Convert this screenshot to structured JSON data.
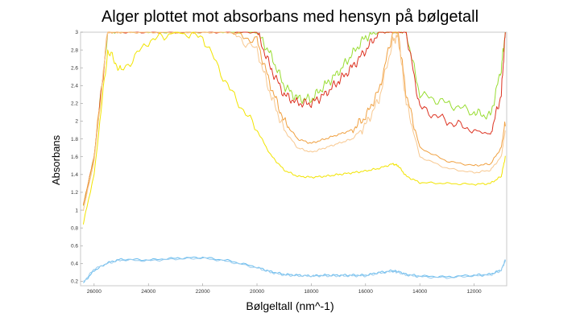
{
  "chart_data": {
    "type": "line",
    "title": "Alger plottet mot absorbans med hensyn på bølgetall",
    "xlabel": "Bølgeltall (nm^-1)",
    "ylabel": "Absorbans",
    "xlim": [
      26500,
      10800
    ],
    "ylim": [
      0.15,
      3.0
    ],
    "x_reversed": true,
    "grid": false,
    "legend": "none",
    "xticks": [
      "26000",
      "24000",
      "22000",
      "20000",
      "18000",
      "16000",
      "14000",
      "12000"
    ],
    "yticks": [
      "0.2",
      "0.4",
      "0.6",
      "0.8",
      "1",
      "1.2",
      "1.4",
      "1.6",
      "1.8",
      "2",
      "2.2",
      "2.4",
      "2.6",
      "2.8",
      "3"
    ],
    "x": [
      26400,
      26000,
      25500,
      25000,
      24000,
      23000,
      22000,
      21000,
      20000,
      19500,
      19000,
      18500,
      18000,
      17500,
      17000,
      16500,
      16000,
      15500,
      15000,
      14800,
      14500,
      14000,
      13000,
      12000,
      11400,
      11000,
      10850
    ],
    "series": [
      {
        "color": "#99dd33",
        "values": [
          1.05,
          1.6,
          3.0,
          3.0,
          3.0,
          3.0,
          3.0,
          3.0,
          3.0,
          2.75,
          2.4,
          2.25,
          2.25,
          2.4,
          2.55,
          2.75,
          2.95,
          3.0,
          3.0,
          3.0,
          3.0,
          2.3,
          2.2,
          2.1,
          2.05,
          2.6,
          3.0
        ]
      },
      {
        "color": "#dd3322",
        "values": [
          1.05,
          1.6,
          3.0,
          3.0,
          3.0,
          3.0,
          3.0,
          3.0,
          3.0,
          2.6,
          2.3,
          2.2,
          2.2,
          2.3,
          2.45,
          2.6,
          2.8,
          3.0,
          3.0,
          3.0,
          3.0,
          2.15,
          2.0,
          1.9,
          1.85,
          2.3,
          3.0
        ]
      },
      {
        "color": "#f0a040",
        "values": [
          1.05,
          1.6,
          3.0,
          3.0,
          3.0,
          3.0,
          3.0,
          3.0,
          2.9,
          2.4,
          2.0,
          1.8,
          1.75,
          1.8,
          1.85,
          1.9,
          2.05,
          2.35,
          3.0,
          3.0,
          2.3,
          1.7,
          1.55,
          1.5,
          1.52,
          1.7,
          2.0
        ]
      },
      {
        "color": "#f8c890",
        "values": [
          1.0,
          1.55,
          3.0,
          3.0,
          3.0,
          3.0,
          3.0,
          3.0,
          2.8,
          2.3,
          1.9,
          1.7,
          1.65,
          1.7,
          1.75,
          1.8,
          1.95,
          2.25,
          2.9,
          2.95,
          2.2,
          1.6,
          1.47,
          1.42,
          1.45,
          1.6,
          1.9
        ]
      },
      {
        "color": "#f2e400",
        "values": [
          0.85,
          1.4,
          2.8,
          2.55,
          2.9,
          3.0,
          2.95,
          2.35,
          1.9,
          1.62,
          1.45,
          1.38,
          1.37,
          1.38,
          1.4,
          1.42,
          1.44,
          1.47,
          1.52,
          1.5,
          1.38,
          1.31,
          1.3,
          1.29,
          1.3,
          1.38,
          1.6
        ]
      },
      {
        "color": "#66bbee",
        "values": [
          0.18,
          0.32,
          0.41,
          0.45,
          0.44,
          0.46,
          0.47,
          0.43,
          0.36,
          0.31,
          0.28,
          0.27,
          0.26,
          0.27,
          0.27,
          0.27,
          0.27,
          0.3,
          0.32,
          0.31,
          0.28,
          0.26,
          0.25,
          0.27,
          0.28,
          0.33,
          0.43
        ]
      },
      {
        "color": "#99ccee",
        "values": [
          0.19,
          0.34,
          0.4,
          0.44,
          0.43,
          0.45,
          0.46,
          0.42,
          0.35,
          0.3,
          0.27,
          0.26,
          0.26,
          0.26,
          0.26,
          0.26,
          0.26,
          0.29,
          0.31,
          0.3,
          0.27,
          0.25,
          0.24,
          0.26,
          0.27,
          0.32,
          0.45
        ]
      }
    ]
  }
}
